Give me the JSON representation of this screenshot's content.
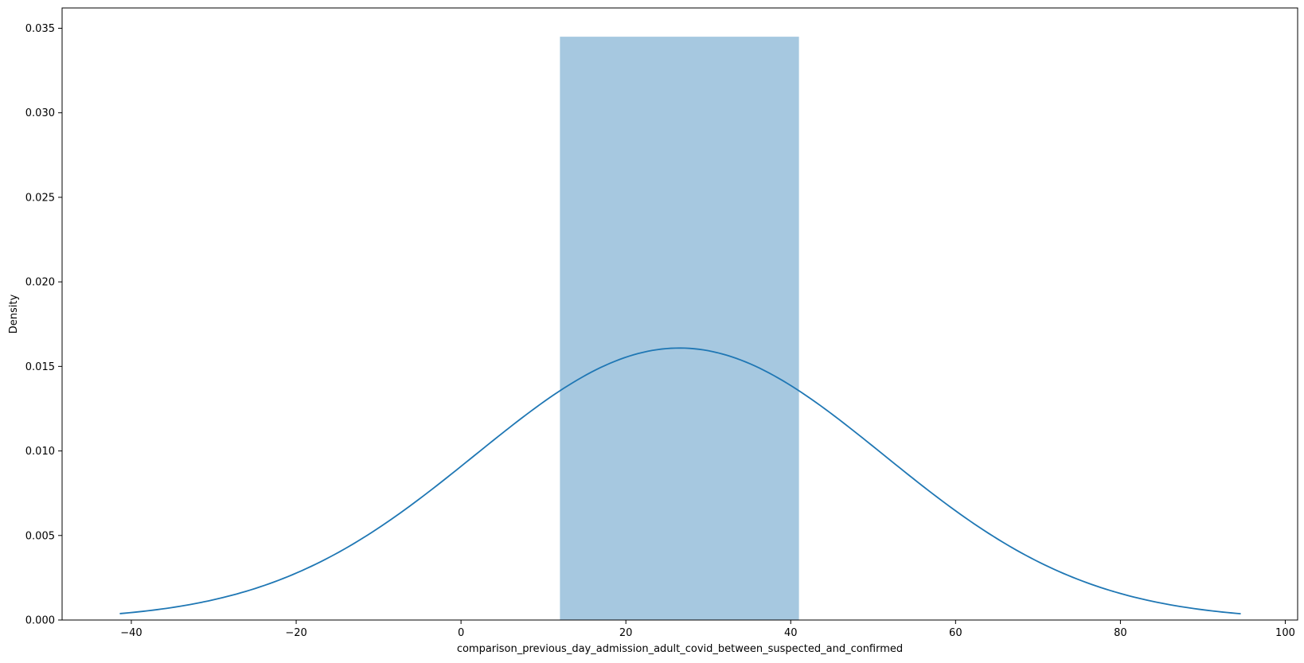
{
  "chart_data": {
    "type": "histogram",
    "title": "",
    "xlabel": "comparison_previous_day_admission_adult_covid_between_suspected_and_confirmed",
    "ylabel": "Density",
    "xlim": [
      -48.4,
      101.5
    ],
    "ylim": [
      0,
      0.0362
    ],
    "x_ticks": [
      -40,
      -20,
      0,
      20,
      40,
      60,
      80,
      100
    ],
    "y_ticks": [
      0.0,
      0.005,
      0.01,
      0.015,
      0.02,
      0.025,
      0.03,
      0.035
    ],
    "y_tick_labels": [
      "0.000",
      "0.005",
      "0.010",
      "0.015",
      "0.020",
      "0.025",
      "0.030",
      "0.035"
    ],
    "grid": false,
    "legend": false,
    "histogram": {
      "bins": [
        {
          "x0": 12.0,
          "x1": 41.0,
          "density": 0.0345
        }
      ],
      "color": "#a6c8e0"
    },
    "kde": {
      "mean": 26.5,
      "std": 24.8,
      "x_range": [
        -41.4,
        94.6
      ],
      "color": "#1f77b4"
    }
  }
}
